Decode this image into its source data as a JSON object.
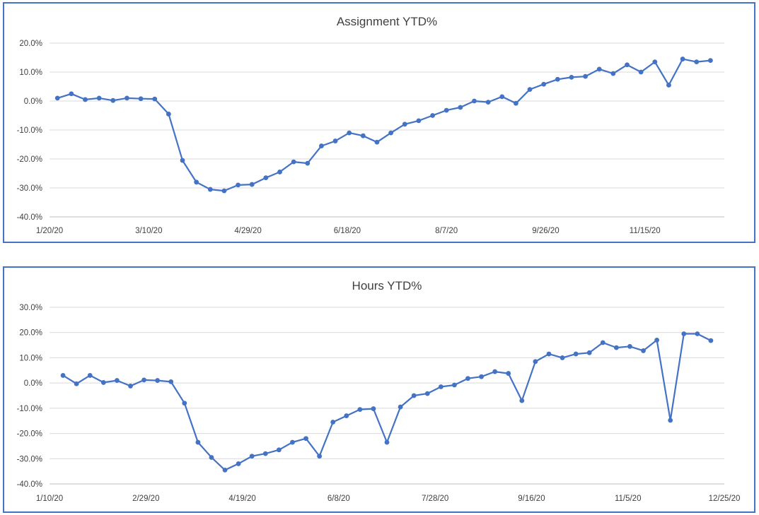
{
  "chart_data": [
    {
      "type": "line",
      "title": "Assignment YTD%",
      "xlabel": "",
      "ylabel": "",
      "ylim": [
        -40,
        20
      ],
      "yticks": [
        "20.0%",
        "10.0%",
        "0.0%",
        "-10.0%",
        "-20.0%",
        "-30.0%",
        "-40.0%"
      ],
      "ytick_values": [
        20,
        10,
        0,
        -10,
        -20,
        -30,
        -40
      ],
      "xlim": [
        "2020-01-20",
        "2020-12-25"
      ],
      "xticks": [
        "1/20/20",
        "3/10/20",
        "4/29/20",
        "6/18/20",
        "8/7/20",
        "9/26/20",
        "11/15/20"
      ],
      "xtick_dates": [
        "2020-01-20",
        "2020-03-10",
        "2020-04-29",
        "2020-06-18",
        "2020-08-07",
        "2020-09-26",
        "2020-11-15"
      ],
      "grid": true,
      "color": "#4472c4",
      "series": [
        {
          "x": [
            "2020-01-24",
            "2020-01-31",
            "2020-02-07",
            "2020-02-14",
            "2020-02-21",
            "2020-02-28",
            "2020-03-06",
            "2020-03-13",
            "2020-03-20",
            "2020-03-27",
            "2020-04-03",
            "2020-04-10",
            "2020-04-17",
            "2020-04-24",
            "2020-05-01",
            "2020-05-08",
            "2020-05-15",
            "2020-05-22",
            "2020-05-29",
            "2020-06-05",
            "2020-06-12",
            "2020-06-19",
            "2020-06-26",
            "2020-07-03",
            "2020-07-10",
            "2020-07-17",
            "2020-07-24",
            "2020-07-31",
            "2020-08-07",
            "2020-08-14",
            "2020-08-21",
            "2020-08-28",
            "2020-09-04",
            "2020-09-11",
            "2020-09-18",
            "2020-09-25",
            "2020-10-02",
            "2020-10-09",
            "2020-10-16",
            "2020-10-23",
            "2020-10-30",
            "2020-11-06",
            "2020-11-13",
            "2020-11-20",
            "2020-11-27",
            "2020-12-04",
            "2020-12-11",
            "2020-12-18"
          ],
          "values": [
            1.0,
            2.5,
            0.5,
            1.0,
            0.2,
            1.0,
            0.8,
            0.7,
            -4.5,
            -20.5,
            -28.0,
            -30.5,
            -31.0,
            -29.0,
            -28.8,
            -26.5,
            -24.5,
            -21.0,
            -21.5,
            -15.5,
            -13.8,
            -11.0,
            -12.0,
            -14.2,
            -11.0,
            -8.0,
            -6.8,
            -5.0,
            -3.2,
            -2.2,
            0.0,
            -0.4,
            1.5,
            -0.8,
            4.0,
            5.8,
            7.5,
            8.2,
            8.5,
            11.0,
            9.5,
            12.5,
            10.0,
            13.5,
            5.5,
            14.5,
            13.5,
            14.0
          ]
        }
      ]
    },
    {
      "type": "line",
      "title": "Hours YTD%",
      "xlabel": "",
      "ylabel": "",
      "ylim": [
        -40,
        30
      ],
      "yticks": [
        "30.0%",
        "20.0%",
        "10.0%",
        "0.0%",
        "-10.0%",
        "-20.0%",
        "-30.0%",
        "-40.0%"
      ],
      "ytick_values": [
        30,
        20,
        10,
        0,
        -10,
        -20,
        -30,
        -40
      ],
      "xlim": [
        "2020-01-10",
        "2020-12-25"
      ],
      "xticks": [
        "1/10/20",
        "2/29/20",
        "4/19/20",
        "6/8/20",
        "7/28/20",
        "9/16/20",
        "11/5/20",
        "12/25/20"
      ],
      "xtick_dates": [
        "2020-01-10",
        "2020-02-29",
        "2020-04-19",
        "2020-06-08",
        "2020-07-28",
        "2020-09-16",
        "2020-11-05",
        "2020-12-25"
      ],
      "grid": true,
      "color": "#4472c4",
      "series": [
        {
          "x": [
            "2020-01-17",
            "2020-01-24",
            "2020-01-31",
            "2020-02-07",
            "2020-02-14",
            "2020-02-21",
            "2020-02-28",
            "2020-03-06",
            "2020-03-13",
            "2020-03-20",
            "2020-03-27",
            "2020-04-03",
            "2020-04-10",
            "2020-04-17",
            "2020-04-24",
            "2020-05-01",
            "2020-05-08",
            "2020-05-15",
            "2020-05-22",
            "2020-05-29",
            "2020-06-05",
            "2020-06-12",
            "2020-06-19",
            "2020-06-26",
            "2020-07-03",
            "2020-07-10",
            "2020-07-17",
            "2020-07-24",
            "2020-07-31",
            "2020-08-07",
            "2020-08-14",
            "2020-08-21",
            "2020-08-28",
            "2020-09-04",
            "2020-09-11",
            "2020-09-18",
            "2020-09-25",
            "2020-10-02",
            "2020-10-09",
            "2020-10-16",
            "2020-10-23",
            "2020-10-30",
            "2020-11-06",
            "2020-11-13",
            "2020-11-20",
            "2020-11-27",
            "2020-12-04",
            "2020-12-11",
            "2020-12-18"
          ],
          "values": [
            3.0,
            -0.3,
            3.0,
            0.2,
            1.0,
            -1.2,
            1.2,
            1.0,
            0.5,
            -8.0,
            -23.5,
            -29.5,
            -34.5,
            -32.0,
            -29.0,
            -28.0,
            -26.5,
            -23.5,
            -22.0,
            -29.0,
            -15.5,
            -13.0,
            -10.5,
            -10.2,
            -23.5,
            -9.5,
            -5.0,
            -4.2,
            -1.5,
            -0.8,
            1.8,
            2.5,
            4.5,
            3.8,
            -7.0,
            8.5,
            11.5,
            10.0,
            11.5,
            12.0,
            16.0,
            14.0,
            14.5,
            12.8,
            17.0,
            -14.8,
            19.5,
            19.5,
            16.8
          ]
        }
      ]
    }
  ]
}
